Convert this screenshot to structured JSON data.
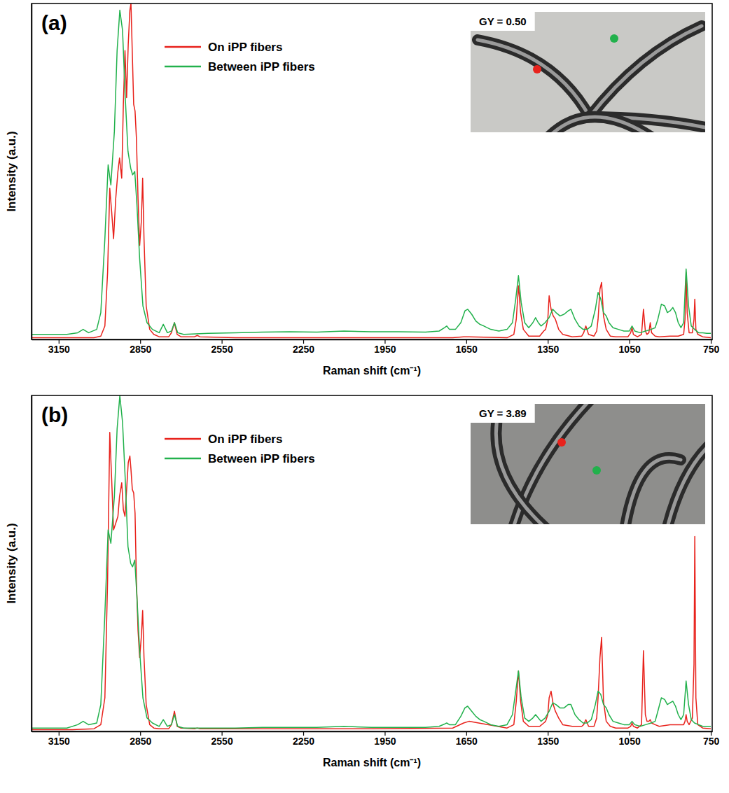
{
  "chart_data": [
    {
      "type": "line",
      "label": "(a)",
      "annotation": "GY = 0.50",
      "x_label": "Raman shift (cm⁻¹)",
      "y_label": "Intensity (a.u.)",
      "xlim": [
        3250,
        745
      ],
      "xticks": [
        3150,
        2850,
        2550,
        2250,
        1950,
        1650,
        1350,
        1050,
        750
      ],
      "ylim": [
        0,
        100
      ],
      "tick_labels": "x",
      "legend": "top-left",
      "series": [
        {
          "name": "On iPP fibers",
          "color": "#e8221c",
          "x": [
            3250,
            3100,
            3020,
            2995,
            2980,
            2970,
            2962,
            2955,
            2948,
            2940,
            2932,
            2926,
            2918,
            2912,
            2906,
            2900,
            2894,
            2888,
            2884,
            2879,
            2874,
            2869,
            2864,
            2858,
            2852,
            2846,
            2841,
            2836,
            2828,
            2815,
            2800,
            2780,
            2745,
            2735,
            2724,
            2714,
            2700,
            2650,
            2640,
            2630,
            2500,
            2000,
            1700,
            1660,
            1640,
            1500,
            1475,
            1466,
            1458,
            1450,
            1440,
            1420,
            1380,
            1365,
            1358,
            1350,
            1345,
            1338,
            1330,
            1322,
            1310,
            1295,
            1260,
            1225,
            1218,
            1210,
            1200,
            1180,
            1170,
            1165,
            1158,
            1152,
            1145,
            1135,
            1120,
            1100,
            1055,
            1045,
            1040,
            1035,
            1020,
            1005,
            998,
            991,
            985,
            978,
            973,
            968,
            955,
            940,
            900,
            870,
            850,
            845,
            841,
            837,
            830,
            818,
            812,
            809,
            805,
            798,
            780,
            750
          ],
          "values": [
            0.5,
            0.5,
            0.5,
            1,
            4,
            20,
            45,
            38,
            30,
            42,
            50,
            54,
            48,
            70,
            86,
            72,
            88,
            98,
            100,
            85,
            70,
            68,
            60,
            42,
            28,
            35,
            48,
            30,
            10,
            3,
            1.5,
            0.8,
            0.8,
            2,
            5,
            1.5,
            0.8,
            0.8,
            1.2,
            0.8,
            0.5,
            0.5,
            0.5,
            0.8,
            0.8,
            0.5,
            1.5,
            6,
            16,
            8,
            3,
            1,
            1,
            2.5,
            3,
            6,
            13,
            9,
            7,
            6,
            3,
            1.5,
            0.8,
            1,
            2,
            4,
            1.5,
            1,
            2.5,
            6,
            15,
            17,
            7,
            3,
            1,
            0.8,
            0.8,
            2,
            3.5,
            1.5,
            0.8,
            1.5,
            9,
            2.5,
            1.5,
            2,
            5,
            2,
            1,
            0.8,
            1,
            1,
            1.5,
            6,
            20,
            8,
            2,
            2,
            6,
            12,
            3,
            1.5,
            0.8,
            0.5
          ]
        },
        {
          "name": "Between iPP fibers",
          "color": "#22b14c",
          "x": [
            3250,
            3120,
            3080,
            3060,
            3040,
            3010,
            2995,
            2980,
            2968,
            2958,
            2945,
            2935,
            2925,
            2915,
            2905,
            2895,
            2885,
            2878,
            2870,
            2862,
            2852,
            2840,
            2825,
            2805,
            2780,
            2765,
            2750,
            2735,
            2724,
            2712,
            2690,
            2600,
            2500,
            2400,
            2300,
            2200,
            2100,
            2000,
            1900,
            1800,
            1750,
            1730,
            1722,
            1712,
            1690,
            1670,
            1655,
            1645,
            1630,
            1615,
            1600,
            1585,
            1560,
            1530,
            1500,
            1480,
            1468,
            1458,
            1448,
            1435,
            1420,
            1405,
            1395,
            1385,
            1375,
            1360,
            1345,
            1332,
            1320,
            1305,
            1290,
            1275,
            1265,
            1250,
            1235,
            1220,
            1205,
            1190,
            1175,
            1165,
            1155,
            1145,
            1135,
            1125,
            1110,
            1090,
            1070,
            1050,
            1040,
            1030,
            1010,
            990,
            970,
            955,
            945,
            932,
            920,
            910,
            900,
            890,
            880,
            870,
            860,
            850,
            841,
            832,
            822,
            810,
            795,
            780,
            765,
            750
          ],
          "values": [
            1.5,
            1.5,
            2,
            3,
            2,
            3,
            8,
            30,
            52,
            46,
            62,
            86,
            98,
            92,
            72,
            56,
            51,
            49,
            50,
            40,
            24,
            10,
            5,
            3,
            2,
            4.5,
            2,
            2.5,
            5,
            2,
            1.5,
            1.8,
            2,
            2.2,
            2.3,
            2.2,
            2.5,
            2.3,
            2.3,
            2.2,
            2.5,
            3.5,
            4,
            3,
            3,
            5,
            8.5,
            9,
            7.5,
            5.5,
            4.5,
            4,
            3,
            2.5,
            3,
            5,
            12,
            19,
            11,
            5,
            3.5,
            5,
            6.5,
            5,
            4,
            5,
            6.5,
            9,
            8,
            7,
            7.5,
            8.5,
            9,
            6,
            4,
            3,
            3,
            4,
            9,
            14,
            12,
            8,
            7,
            5,
            3.5,
            3,
            2.5,
            2.5,
            4,
            2.5,
            2,
            2.5,
            3,
            3.5,
            6,
            10.5,
            10,
            8,
            8.5,
            9.5,
            8,
            5,
            3.5,
            5,
            21,
            10,
            4,
            3,
            2,
            2,
            1.8,
            1.8
          ]
        }
      ]
    },
    {
      "type": "line",
      "label": "(b)",
      "annotation": "GY = 3.89",
      "x_label": "Raman shift (cm⁻¹)",
      "y_label": "Intensity (a.u.)",
      "xlim": [
        3250,
        745
      ],
      "xticks": [
        3150,
        2850,
        2550,
        2250,
        1950,
        1650,
        1350,
        1050,
        750
      ],
      "ylim": [
        0,
        100
      ],
      "tick_labels": "x",
      "legend": "top-left",
      "series": [
        {
          "name": "On iPP fibers",
          "color": "#e8221c",
          "x": [
            3250,
            3100,
            3020,
            2995,
            2980,
            2970,
            2962,
            2955,
            2948,
            2940,
            2932,
            2926,
            2918,
            2912,
            2906,
            2900,
            2894,
            2888,
            2884,
            2879,
            2874,
            2869,
            2864,
            2858,
            2852,
            2846,
            2841,
            2836,
            2828,
            2815,
            2800,
            2780,
            2745,
            2735,
            2724,
            2714,
            2700,
            2650,
            2640,
            2630,
            2500,
            2000,
            1700,
            1660,
            1640,
            1500,
            1475,
            1466,
            1458,
            1450,
            1440,
            1420,
            1380,
            1365,
            1358,
            1350,
            1345,
            1338,
            1330,
            1322,
            1310,
            1295,
            1260,
            1225,
            1218,
            1210,
            1200,
            1180,
            1170,
            1165,
            1158,
            1152,
            1145,
            1135,
            1120,
            1100,
            1055,
            1045,
            1040,
            1035,
            1020,
            1005,
            998,
            991,
            985,
            978,
            973,
            968,
            955,
            940,
            900,
            870,
            850,
            845,
            841,
            837,
            830,
            818,
            812,
            809,
            805,
            798,
            780,
            750
          ],
          "values": [
            0.5,
            0.5,
            0.8,
            2,
            10,
            45,
            89,
            75,
            60,
            62,
            64,
            70,
            74,
            66,
            64,
            72,
            80,
            82,
            78,
            72,
            71,
            65,
            45,
            30,
            22,
            28,
            36,
            22,
            8,
            2,
            1,
            0.8,
            0.8,
            2,
            6,
            1.5,
            1,
            0.8,
            1,
            0.8,
            0.8,
            0.8,
            1,
            2.5,
            3,
            1,
            2,
            9,
            18,
            9,
            3,
            1.5,
            1.5,
            2.5,
            3,
            5,
            10,
            12,
            8,
            6,
            4,
            2,
            1.5,
            1.5,
            2,
            3.5,
            1.5,
            1.5,
            4,
            10,
            22,
            28,
            9,
            3,
            1.5,
            1,
            1,
            1.5,
            2.5,
            1.5,
            1,
            2,
            24,
            5,
            3,
            3,
            3.5,
            2.5,
            2,
            1.5,
            2,
            2,
            2,
            3,
            5,
            3,
            2,
            4,
            20,
            58,
            10,
            2,
            1,
            0.8
          ]
        },
        {
          "name": "Between iPP fibers",
          "color": "#22b14c",
          "x": [
            3250,
            3120,
            3080,
            3060,
            3040,
            3010,
            2995,
            2980,
            2968,
            2958,
            2945,
            2935,
            2925,
            2915,
            2905,
            2895,
            2885,
            2878,
            2870,
            2862,
            2852,
            2840,
            2825,
            2805,
            2780,
            2765,
            2750,
            2735,
            2724,
            2712,
            2690,
            2600,
            2500,
            2400,
            2300,
            2200,
            2100,
            2000,
            1900,
            1800,
            1750,
            1730,
            1722,
            1712,
            1690,
            1670,
            1655,
            1645,
            1630,
            1615,
            1600,
            1585,
            1560,
            1530,
            1500,
            1480,
            1468,
            1458,
            1448,
            1435,
            1420,
            1405,
            1395,
            1385,
            1375,
            1360,
            1345,
            1332,
            1320,
            1305,
            1290,
            1275,
            1265,
            1250,
            1235,
            1220,
            1205,
            1190,
            1175,
            1165,
            1155,
            1145,
            1135,
            1125,
            1110,
            1090,
            1070,
            1050,
            1040,
            1030,
            1010,
            990,
            970,
            955,
            945,
            932,
            920,
            910,
            900,
            890,
            880,
            870,
            860,
            850,
            841,
            832,
            822,
            810,
            795,
            780,
            765,
            750
          ],
          "values": [
            1,
            1,
            2,
            3,
            2,
            2.5,
            8,
            35,
            60,
            56,
            70,
            90,
            100,
            92,
            75,
            55,
            50,
            49,
            51,
            40,
            24,
            10,
            4,
            2.5,
            1.5,
            3.5,
            1.5,
            2,
            5,
            1.5,
            1,
            1,
            1,
            1.2,
            1.2,
            1.2,
            1.5,
            1.2,
            1.2,
            1.2,
            1.5,
            2.2,
            2.5,
            2,
            2,
            4.5,
            7,
            7.5,
            6,
            4.5,
            3.5,
            3,
            2,
            1.5,
            2,
            5,
            12,
            18,
            10,
            4,
            3,
            4,
            5,
            4,
            3,
            4,
            6,
            8.5,
            8,
            7,
            7,
            8,
            8,
            5,
            3.5,
            2.5,
            2.5,
            3.5,
            8,
            12,
            11,
            8,
            7,
            5,
            3,
            2.5,
            2,
            2,
            3,
            2,
            1.5,
            2,
            2.5,
            3,
            6,
            10,
            9.5,
            8,
            8.5,
            9,
            7.5,
            5,
            3.5,
            5,
            15,
            8,
            3.5,
            2.5,
            2,
            1.5,
            1.5,
            1.5
          ]
        }
      ]
    }
  ]
}
